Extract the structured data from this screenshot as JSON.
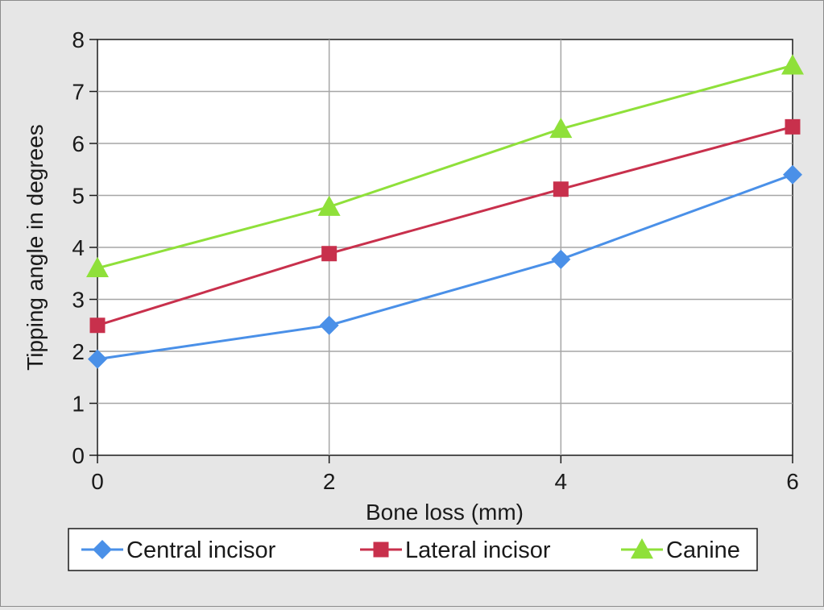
{
  "chart_data": {
    "type": "line",
    "title": "",
    "xlabel": "Bone loss (mm)",
    "ylabel": "Tipping angle in degrees",
    "x": [
      0,
      2,
      4,
      6
    ],
    "xlim": [
      0,
      6
    ],
    "ylim": [
      0,
      8
    ],
    "x_ticks": [
      "0",
      "2",
      "4",
      "6"
    ],
    "y_ticks": [
      "0",
      "1",
      "2",
      "3",
      "4",
      "5",
      "6",
      "7",
      "8"
    ],
    "grid": true,
    "legend_position": "bottom",
    "series": [
      {
        "name": "Central incisor",
        "values": [
          1.85,
          2.5,
          3.77,
          5.4
        ],
        "color": "#4a90e8",
        "marker": "diamond"
      },
      {
        "name": "Lateral incisor",
        "values": [
          2.5,
          3.88,
          5.12,
          6.32
        ],
        "color": "#c8304c",
        "marker": "square"
      },
      {
        "name": "Canine",
        "values": [
          3.6,
          4.78,
          6.28,
          7.5
        ],
        "color": "#8fe03a",
        "marker": "triangle"
      }
    ]
  }
}
